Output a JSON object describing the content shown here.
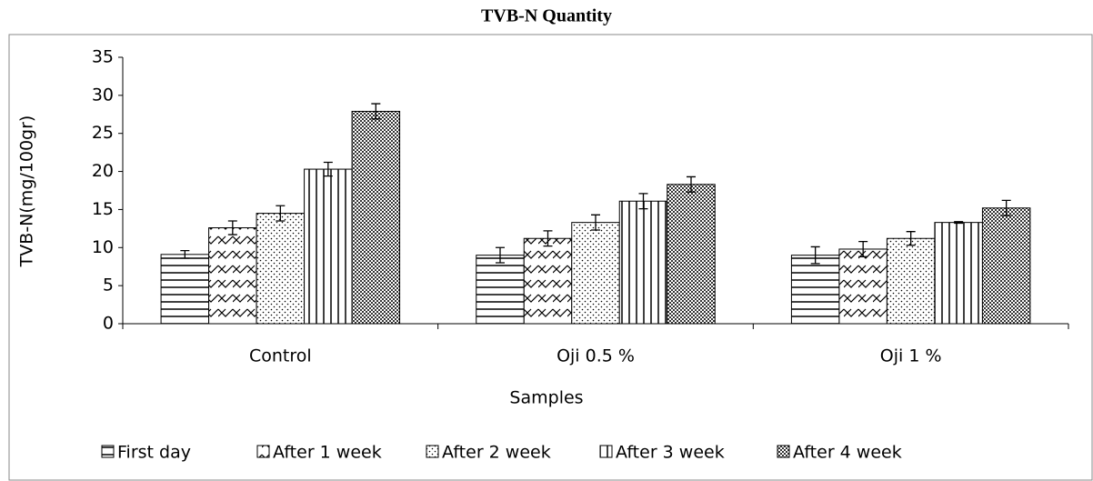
{
  "chart_data": {
    "type": "bar",
    "title": "TVB-N Quantity",
    "x_label": "Samples",
    "y_label": "TVB-N(mg/100gr)",
    "categories": [
      "Control",
      "Oji 0.5 %",
      "Oji 1 %"
    ],
    "series": [
      {
        "name": "First day",
        "color": "#000000",
        "pattern": "horizontal",
        "values": [
          9.1,
          9.0,
          9.0
        ],
        "errors": [
          0.5,
          1.0,
          1.1
        ]
      },
      {
        "name": "After 1 week",
        "color": "#000000",
        "pattern": "wave",
        "values": [
          12.6,
          11.2,
          9.8
        ],
        "errors": [
          0.9,
          1.0,
          1.0
        ]
      },
      {
        "name": "After 2 week",
        "color": "#000000",
        "pattern": "dots",
        "values": [
          14.5,
          13.3,
          11.2
        ],
        "errors": [
          1.0,
          1.0,
          0.9
        ]
      },
      {
        "name": "After 3 week",
        "color": "#000000",
        "pattern": "vertical",
        "values": [
          20.3,
          16.1,
          13.3
        ],
        "errors": [
          0.9,
          1.0,
          0.1
        ]
      },
      {
        "name": "After 4 week",
        "color": "#000000",
        "pattern": "checker",
        "values": [
          27.9,
          18.3,
          15.2
        ],
        "errors": [
          1.0,
          1.0,
          1.0
        ]
      }
    ],
    "ylim": [
      0,
      35
    ],
    "yticks": [
      0,
      5,
      10,
      15,
      20,
      25,
      30,
      35
    ],
    "grid": false,
    "legend": "bottom"
  }
}
